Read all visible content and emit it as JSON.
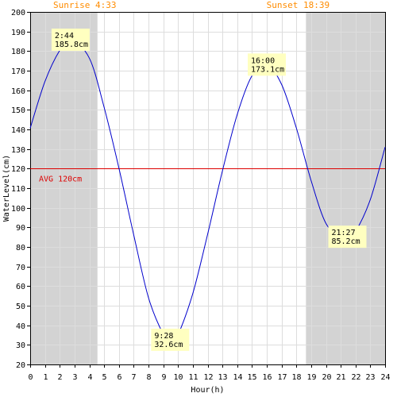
{
  "chart_data": {
    "type": "line",
    "xlabel": "Hour(h)",
    "ylabel": "WaterLevel(cm)",
    "xlim": [
      0,
      24
    ],
    "ylim": [
      20,
      200
    ],
    "x_ticks": [
      "0",
      "1",
      "2",
      "3",
      "4",
      "5",
      "6",
      "7",
      "8",
      "9",
      "10",
      "11",
      "12",
      "13",
      "14",
      "15",
      "16",
      "17",
      "18",
      "19",
      "20",
      "21",
      "22",
      "23",
      "24"
    ],
    "y_ticks": [
      "20",
      "30",
      "40",
      "50",
      "60",
      "70",
      "80",
      "90",
      "100",
      "110",
      "120",
      "130",
      "140",
      "150",
      "160",
      "170",
      "180",
      "190",
      "200"
    ],
    "grid": true,
    "sunrise": {
      "hour": 4.55,
      "label": "Sunrise 4:33"
    },
    "sunset": {
      "hour": 18.65,
      "label": "Sunset 18:39"
    },
    "average": {
      "value": 120,
      "label": "AVG 120cm"
    },
    "series": [
      {
        "x": [
          0,
          1,
          2,
          2.733,
          4,
          5,
          6,
          7,
          8,
          9,
          9.467,
          10,
          11,
          12,
          13,
          14,
          15,
          16,
          17,
          18,
          19,
          20,
          21,
          21.45,
          22,
          23,
          24
        ],
        "y": [
          140.6,
          164.5,
          180.4,
          185.8,
          176.4,
          151.3,
          120.3,
          86.2,
          54.1,
          35.4,
          32.6,
          35.3,
          56.3,
          86.5,
          118.8,
          147.6,
          167.4,
          173.1,
          163.0,
          140.7,
          113.8,
          92.0,
          85.6,
          85.2,
          87.9,
          104.2,
          131.0
        ]
      }
    ],
    "annotations": [
      {
        "x": 2.733,
        "y": 185.8,
        "time": "2:44",
        "level": "185.8cm"
      },
      {
        "x": 9.467,
        "y": 32.6,
        "time": "9:28",
        "level": "32.6cm"
      },
      {
        "x": 16.0,
        "y": 173.1,
        "time": "16:00",
        "level": "173.1cm"
      },
      {
        "x": 21.45,
        "y": 85.2,
        "time": "21:27",
        "level": "85.2cm"
      }
    ],
    "colors": {
      "line": "#0000cc",
      "night": "#d3d3d3",
      "avg": "#dd0000",
      "sun_text": "#ff8c00",
      "annotation_bg": "#ffffc0",
      "grid": "#dddddd"
    }
  }
}
